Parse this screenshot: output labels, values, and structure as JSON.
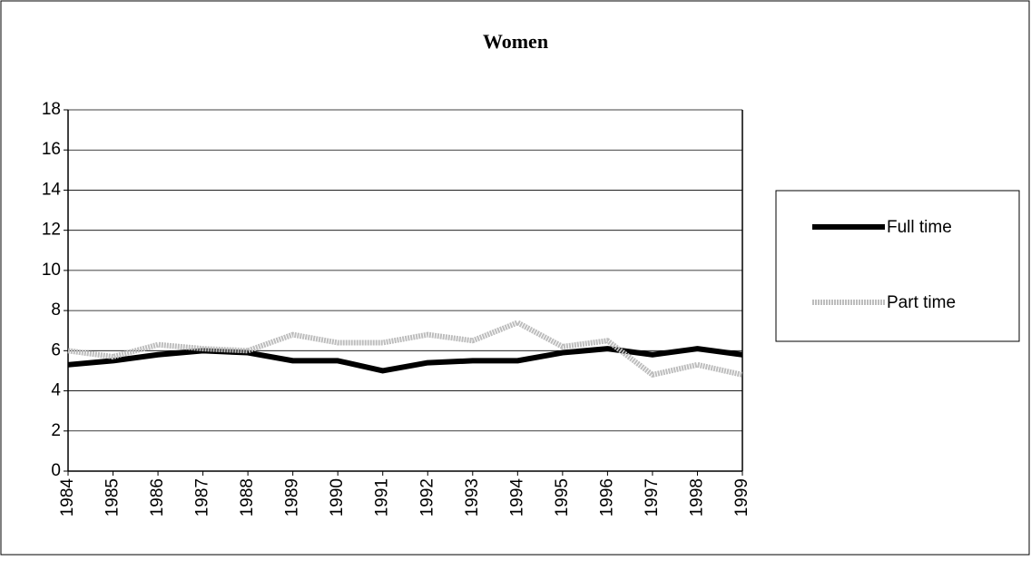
{
  "chart_data": {
    "type": "line",
    "title": "Women",
    "categories": [
      "1984",
      "1985",
      "1986",
      "1987",
      "1988",
      "1989",
      "1990",
      "1991",
      "1992",
      "1993",
      "1994",
      "1995",
      "1996",
      "1997",
      "1998",
      "1999"
    ],
    "series": [
      {
        "name": "Full time",
        "color": "#000000",
        "values": [
          5.3,
          5.5,
          5.8,
          6.0,
          5.9,
          5.5,
          5.5,
          5.0,
          5.4,
          5.5,
          5.5,
          5.9,
          6.1,
          5.8,
          6.1,
          5.8
        ]
      },
      {
        "name": "Part time",
        "color": "#bdbdbd",
        "values": [
          6.0,
          5.7,
          6.3,
          6.1,
          6.0,
          6.8,
          6.4,
          6.4,
          6.8,
          6.5,
          7.4,
          6.2,
          6.5,
          4.8,
          5.3,
          4.8
        ]
      }
    ],
    "ylim": [
      0,
      18
    ],
    "yticks": [
      0,
      2,
      4,
      6,
      8,
      10,
      12,
      14,
      16,
      18
    ],
    "grid": true,
    "legend": "right"
  }
}
